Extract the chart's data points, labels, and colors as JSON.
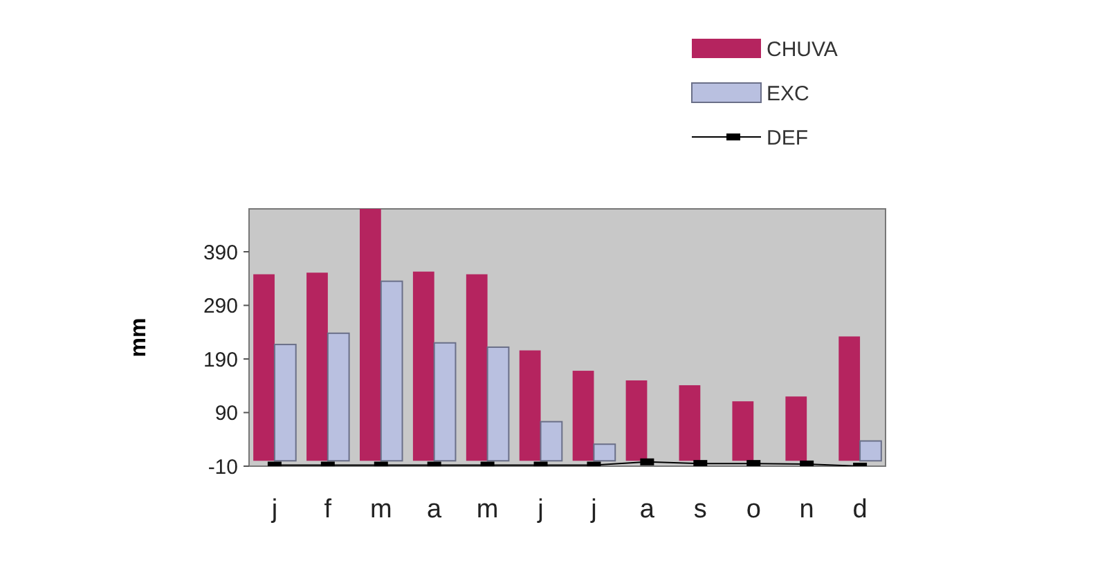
{
  "chart_data": {
    "type": "bar",
    "ylabel": "mm",
    "categories": [
      "j",
      "f",
      "m",
      "a",
      "m",
      "j",
      "j",
      "a",
      "s",
      "o",
      "n",
      "d"
    ],
    "series": [
      {
        "name": "CHUVA",
        "color": "#b5245f",
        "values": [
          348,
          351,
          470,
          353,
          348,
          206,
          168,
          150,
          141,
          111,
          120,
          232
        ]
      },
      {
        "name": "EXC",
        "color": "#b9c0e0",
        "values": [
          217,
          238,
          335,
          220,
          212,
          73,
          31,
          0,
          0,
          0,
          0,
          37
        ]
      },
      {
        "name": "DEF",
        "type": "line",
        "color": "#000000",
        "marker": "square",
        "values": [
          -8,
          -8,
          -8,
          -8,
          -8,
          -8,
          -8,
          -2,
          -5,
          -5,
          -6,
          -10
        ]
      }
    ],
    "ylim": [
      -10,
      470
    ],
    "yticks": [
      -10,
      90,
      190,
      290,
      390
    ],
    "grid": false,
    "legend": "top right"
  }
}
